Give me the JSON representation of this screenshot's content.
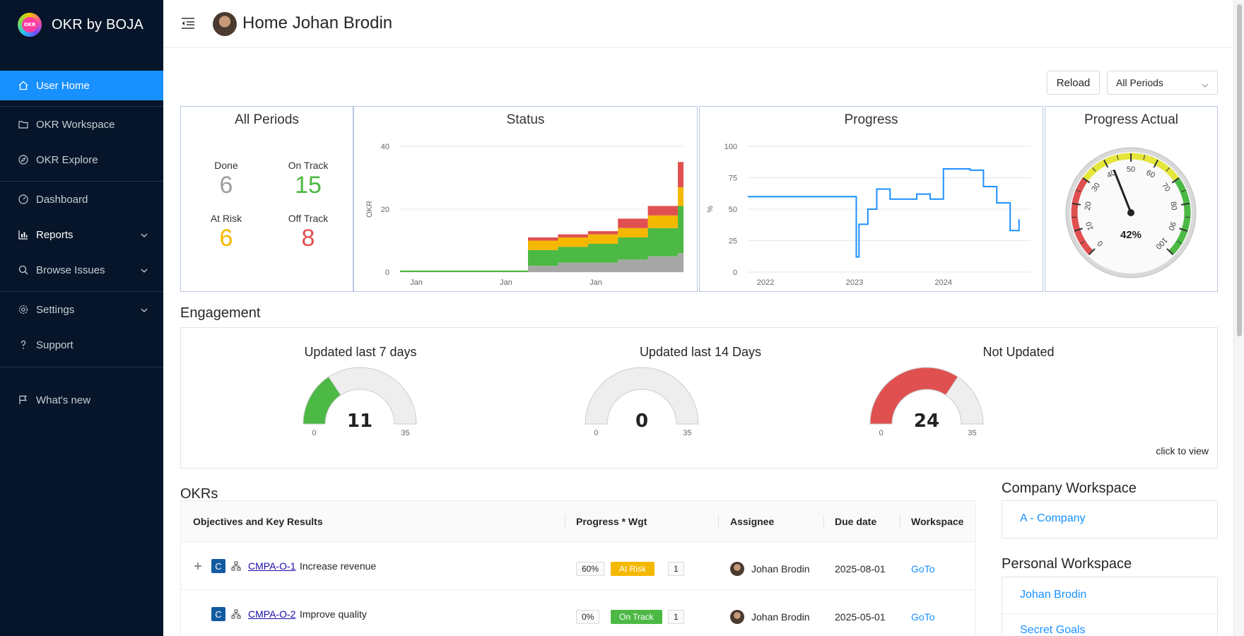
{
  "app": {
    "name": "OKR by BOJA",
    "logo_text": "OKR"
  },
  "sidebar": {
    "items": [
      {
        "label": "User Home",
        "icon": "home-icon"
      },
      {
        "label": "OKR Workspace",
        "icon": "folder-icon"
      },
      {
        "label": "OKR Explore",
        "icon": "compass-icon"
      },
      {
        "label": "Dashboard",
        "icon": "dashboard-icon"
      },
      {
        "label": "Reports",
        "icon": "bar-chart-icon"
      },
      {
        "label": "Browse Issues",
        "icon": "search-icon"
      },
      {
        "label": "Settings",
        "icon": "gear-icon"
      },
      {
        "label": "Support",
        "icon": "question-icon"
      },
      {
        "label": "What's new",
        "icon": "flag-icon"
      }
    ]
  },
  "header": {
    "title": "Home Johan Brodin"
  },
  "toolbar": {
    "reload_label": "Reload",
    "period_value": "All Periods"
  },
  "summary": {
    "title": "All Periods",
    "done_label": "Done",
    "done_value": "6",
    "ontrack_label": "On Track",
    "ontrack_value": "15",
    "atrisk_label": "At Risk",
    "atrisk_value": "6",
    "offtrack_label": "Off Track",
    "offtrack_value": "8",
    "colors": {
      "done": "#9e9e9e",
      "ontrack": "#4cb944",
      "atrisk": "#f5b800",
      "offtrack": "#e05050"
    }
  },
  "status_chart": {
    "title": "Status",
    "ylabel": "OKR",
    "yticks": [
      "40",
      "20",
      "0"
    ],
    "xticks": [
      "Jan",
      "Jan",
      "Jan"
    ]
  },
  "progress_chart": {
    "title": "Progress",
    "ylabel": "%",
    "yticks": [
      "100",
      "75",
      "50",
      "25",
      "0"
    ],
    "xticks": [
      "2022",
      "2023",
      "2024"
    ]
  },
  "gauge": {
    "title": "Progress Actual",
    "value_text": "42%",
    "ticks": [
      "0",
      "10",
      "20",
      "30",
      "40",
      "50",
      "60",
      "70",
      "80",
      "90",
      "100"
    ]
  },
  "engagement": {
    "title": "Engagement",
    "gauges": [
      {
        "title": "Updated last 7 days",
        "value": "11",
        "min": "0",
        "max": "35"
      },
      {
        "title": "Updated last 14 Days",
        "value": "0",
        "min": "0",
        "max": "35"
      },
      {
        "title": "Not Updated",
        "value": "24",
        "min": "0",
        "max": "35"
      }
    ],
    "click_hint": "click to view"
  },
  "okrs": {
    "title": "OKRs",
    "columns": [
      "Objectives and Key Results",
      "Progress * Wgt",
      "Assignee",
      "Due date",
      "Workspace"
    ],
    "rows": [
      {
        "badge": "C",
        "key": "CMPA-O-1",
        "summary": "Increase revenue",
        "progress": "60%",
        "status": "At Risk",
        "status_color": "#f5b800",
        "weight": "1",
        "assignee": "Johan Brodin",
        "due": "2025-08-01",
        "workspace": "GoTo"
      },
      {
        "badge": "C",
        "key": "CMPA-O-2",
        "summary": "Improve quality",
        "progress": "0%",
        "status": "On Track",
        "status_color": "#4cb944",
        "weight": "1",
        "assignee": "Johan Brodin",
        "due": "2025-05-01",
        "workspace": "GoTo"
      }
    ]
  },
  "company_workspace": {
    "title": "Company Workspace",
    "items": [
      "A - Company"
    ]
  },
  "personal_workspace": {
    "title": "Personal Workspace",
    "items": [
      "Johan Brodin",
      "Secret Goals"
    ]
  },
  "chart_data": [
    {
      "type": "area",
      "title": "Status",
      "ylabel": "OKR",
      "ylim": [
        0,
        40
      ],
      "xticks": [
        "Jan",
        "Jan",
        "Jan"
      ],
      "series": [
        {
          "name": "Done",
          "values": [
            0,
            0,
            0,
            0,
            2,
            3,
            3,
            4,
            5,
            6
          ]
        },
        {
          "name": "On Track",
          "values": [
            0.5,
            0.5,
            0.5,
            0.5,
            5,
            5,
            6,
            7,
            9,
            15
          ]
        },
        {
          "name": "At Risk",
          "values": [
            0,
            0,
            0,
            0,
            3,
            3,
            3,
            3,
            4,
            6
          ]
        },
        {
          "name": "Off Track",
          "values": [
            0,
            0,
            0,
            0,
            1,
            1,
            1,
            3,
            3,
            8
          ]
        }
      ]
    },
    {
      "type": "line",
      "title": "Progress",
      "ylabel": "%",
      "ylim": [
        0,
        100
      ],
      "xlim": [
        2021.8,
        2024.9
      ],
      "x": [
        2021.8,
        2023.0,
        2023.02,
        2023.05,
        2023.15,
        2023.25,
        2023.4,
        2023.5,
        2023.7,
        2023.85,
        2024.0,
        2024.3,
        2024.45,
        2024.6,
        2024.75,
        2024.85
      ],
      "series": [
        {
          "name": "Progress",
          "values": [
            60,
            60,
            12,
            38,
            50,
            66,
            58,
            58,
            62,
            58,
            82,
            81,
            68,
            55,
            33,
            42
          ]
        }
      ]
    },
    {
      "type": "gauge",
      "title": "Progress Actual",
      "value": 42,
      "range": [
        0,
        100
      ]
    },
    {
      "type": "gauge",
      "title": "Updated last 7 days",
      "value": 11,
      "range": [
        0,
        35
      ]
    },
    {
      "type": "gauge",
      "title": "Updated last 14 Days",
      "value": 0,
      "range": [
        0,
        35
      ]
    },
    {
      "type": "gauge",
      "title": "Not Updated",
      "value": 24,
      "range": [
        0,
        35
      ]
    }
  ]
}
